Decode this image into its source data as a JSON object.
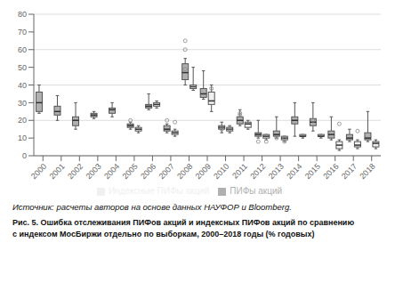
{
  "chart_data": {
    "type": "box",
    "categories": [
      "2000",
      "2001",
      "2002",
      "2003",
      "2004",
      "2005",
      "2006",
      "2007",
      "2008",
      "2009",
      "2010",
      "2011",
      "2012",
      "2013",
      "2014",
      "2015",
      "2016",
      "2017",
      "2018"
    ],
    "series": [
      {
        "name": "ПИФы акций",
        "color": "#b0b0b0",
        "values": [
          {
            "whislo": 24,
            "q1": 25,
            "med": 30,
            "q3": 36,
            "whishi": 40,
            "fliers": []
          },
          {
            "whislo": 20,
            "q1": 23,
            "med": 25,
            "q3": 28,
            "whishi": 34,
            "fliers": []
          },
          {
            "whislo": 15,
            "q1": 17,
            "med": 20,
            "q3": 22,
            "whishi": 30,
            "fliers": []
          },
          {
            "whislo": 21,
            "q1": 22,
            "med": 23,
            "q3": 24,
            "whishi": 25,
            "fliers": []
          },
          {
            "whislo": 22,
            "q1": 24,
            "med": 26,
            "q3": 27,
            "whishi": 30,
            "fliers": []
          },
          {
            "whislo": 15,
            "q1": 16,
            "med": 17,
            "q3": 18,
            "whishi": 19,
            "fliers": [
              20
            ]
          },
          {
            "whislo": 26,
            "q1": 27,
            "med": 28,
            "q3": 29,
            "whishi": 35,
            "fliers": []
          },
          {
            "whislo": 13,
            "q1": 14,
            "med": 15,
            "q3": 17,
            "whishi": 18,
            "fliers": [
              20
            ]
          },
          {
            "whislo": 40,
            "q1": 43,
            "med": 47,
            "q3": 52,
            "whishi": 55,
            "fliers": [
              60,
              65,
              49
            ]
          },
          {
            "whislo": 32,
            "q1": 33,
            "med": 35,
            "q3": 38,
            "whishi": 48,
            "fliers": []
          },
          {
            "whislo": 13,
            "q1": 15,
            "med": 16,
            "q3": 17,
            "whishi": 19,
            "fliers": [
              15,
              16
            ]
          },
          {
            "whislo": 17,
            "q1": 18,
            "med": 20,
            "q3": 22,
            "whishi": 26,
            "fliers": [
              23,
              24
            ]
          },
          {
            "whislo": 10,
            "q1": 11,
            "med": 12,
            "q3": 13,
            "whishi": 20,
            "fliers": [
              8
            ]
          },
          {
            "whislo": 10,
            "q1": 11,
            "med": 12,
            "q3": 14,
            "whishi": 22,
            "fliers": [
              10
            ]
          },
          {
            "whislo": 11,
            "q1": 18,
            "med": 20,
            "q3": 22,
            "whishi": 30,
            "fliers": []
          },
          {
            "whislo": 14,
            "q1": 17,
            "med": 19,
            "q3": 21,
            "whishi": 30,
            "fliers": [
              20
            ]
          },
          {
            "whislo": 9,
            "q1": 10,
            "med": 12,
            "q3": 14,
            "whishi": 22,
            "fliers": []
          },
          {
            "whislo": 8,
            "q1": 9,
            "med": 10,
            "q3": 12,
            "whishi": 15,
            "fliers": []
          },
          {
            "whislo": 8,
            "q1": 9,
            "med": 10,
            "q3": 13,
            "whishi": 25,
            "fliers": []
          }
        ]
      },
      {
        "name": "Индексные ПИФы акций",
        "color": "#f0f0f0",
        "values": [
          null,
          null,
          null,
          null,
          null,
          {
            "whislo": 13,
            "q1": 14,
            "med": 15,
            "q3": 16,
            "whishi": 17,
            "fliers": []
          },
          {
            "whislo": 27,
            "q1": 28,
            "med": 29,
            "q3": 30,
            "whishi": 31,
            "fliers": []
          },
          {
            "whislo": 11,
            "q1": 12,
            "med": 13,
            "q3": 14,
            "whishi": 15,
            "fliers": [
              19
            ]
          },
          {
            "whislo": 37,
            "q1": 38,
            "med": 39,
            "q3": 40,
            "whishi": 50,
            "fliers": []
          },
          {
            "whislo": 25,
            "q1": 29,
            "med": 31,
            "q3": 36,
            "whishi": 40,
            "fliers": [
              38
            ]
          },
          {
            "whislo": 13,
            "q1": 14,
            "med": 15,
            "q3": 16,
            "whishi": 17,
            "fliers": [
              15,
              16
            ]
          },
          {
            "whislo": 15,
            "q1": 16,
            "med": 18,
            "q3": 19,
            "whishi": 20,
            "fliers": []
          },
          {
            "whislo": 9,
            "q1": 10,
            "med": 11,
            "q3": 12,
            "whishi": 12,
            "fliers": [
              8
            ]
          },
          {
            "whislo": 8,
            "q1": 9,
            "med": 10,
            "q3": 11,
            "whishi": 11,
            "fliers": [
              8,
              10
            ]
          },
          {
            "whislo": 10,
            "q1": 11,
            "med": 11,
            "q3": 12,
            "whishi": 12,
            "fliers": []
          },
          {
            "whislo": 10,
            "q1": 11,
            "med": 11,
            "q3": 12,
            "whishi": 12,
            "fliers": []
          },
          {
            "whislo": 3,
            "q1": 4,
            "med": 6,
            "q3": 8,
            "whishi": 9,
            "fliers": [
              18
            ]
          },
          {
            "whislo": 4,
            "q1": 5,
            "med": 6,
            "q3": 8,
            "whishi": 9,
            "fliers": [
              14
            ]
          },
          {
            "whislo": 4,
            "q1": 5,
            "med": 7,
            "q3": 8,
            "whishi": 9,
            "fliers": []
          }
        ]
      }
    ],
    "ylim": [
      0,
      80
    ],
    "yticks": [
      0,
      10,
      20,
      30,
      40,
      50,
      60,
      70,
      80
    ],
    "grid": true,
    "annotations": [
      "Источник: расчеты авторов на основе данных НАУФОР и Bloomberg.",
      "Рис. 5. Ошибка отслеживания ПИФов акций и индексных ПИФов акций по сравнению",
      "с индексом МосБиржи отдельно по выборкам, 2000–2018 годы (% годовых)"
    ]
  }
}
